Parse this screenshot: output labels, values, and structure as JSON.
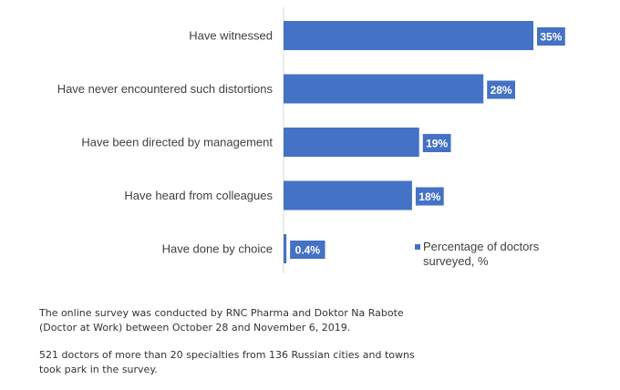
{
  "chart_data": {
    "type": "bar",
    "orientation": "horizontal",
    "categories": [
      "Have witnessed",
      "Have never encountered such distortions",
      "Have been directed by management",
      "Have heard from colleagues",
      "Have done by choice"
    ],
    "series": [
      {
        "name": "Percentage of doctors surveyed, %",
        "values": [
          35,
          28,
          19,
          18,
          0.4
        ],
        "labels": [
          "35%",
          "28%",
          "19%",
          "18%",
          "0.4%"
        ],
        "color": "#4472C4"
      }
    ],
    "xlim": [
      0,
      35
    ],
    "grid": false,
    "legend_position": "right"
  },
  "legend": {
    "line1": "Percentage of doctors",
    "line2": "surveyed, %"
  },
  "notes": {
    "paragraph1": "The online survey was conducted by RNC Pharma and Doktor Na Rabote (Doctor at Work) between October 28 and November 6, 2019.",
    "paragraph2": "521 doctors of more than 20 specialties from 136 Russian cities and towns took park in the survey."
  }
}
